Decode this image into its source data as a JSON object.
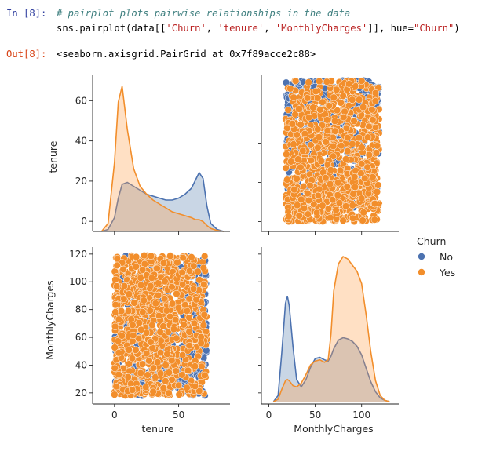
{
  "cell_in": {
    "prompt": "In [8]:",
    "comment": "# pairplot plots pairwise relationships in the data",
    "code": {
      "part1": "sns.pairplot(data[[",
      "s1": "'Churn'",
      "sep1": ", ",
      "s2": "'tenure'",
      "sep2": ", ",
      "s3": "'MonthlyCharges'",
      "part2": "]], hue=",
      "s4": "\"Churn\"",
      "part3": ")"
    }
  },
  "cell_out": {
    "prompt": "Out[8]:",
    "text": "<seaborn.axisgrid.PairGrid at 0x7f89acce2c88>"
  },
  "colors": {
    "no": "#4c72b0",
    "yes": "#f28e2b",
    "no_fill": "#5b84b1",
    "yes_fill": "#ffa24d"
  },
  "chart_data": {
    "type": "scatter",
    "variables": [
      "tenure",
      "MonthlyCharges"
    ],
    "legend": {
      "title": "Churn",
      "entries": [
        "No",
        "Yes"
      ],
      "placement": "right"
    },
    "xlabels": [
      "tenure",
      "MonthlyCharges"
    ],
    "ylabels": [
      "tenure",
      "MonthlyCharges"
    ],
    "panels": {
      "tenure_kde": {
        "xlim": [
          -17,
          90
        ],
        "x_ticks": [
          0,
          50
        ],
        "y_ticks": [
          0,
          20,
          40,
          60
        ],
        "ylim": [
          -5,
          73
        ],
        "x": [
          -10,
          -5,
          0,
          3,
          6,
          10,
          15,
          20,
          25,
          30,
          35,
          40,
          45,
          50,
          55,
          60,
          63,
          66,
          69,
          72,
          75,
          80,
          85
        ],
        "series": [
          {
            "name": "No",
            "values": [
              0,
              1,
              7,
              17,
              24,
              25,
              23,
              21,
              19,
              18,
              17,
              16,
              16,
              17,
              19,
              22,
              26,
              30,
              27,
              13,
              4,
              1,
              0
            ]
          },
          {
            "name": "Yes",
            "values": [
              0,
              4,
              35,
              66,
              74,
              52,
              32,
              23,
              19,
              16,
              14,
              12,
              10,
              9,
              8,
              7,
              6,
              6,
              5,
              3,
              1.5,
              0.5,
              0
            ]
          }
        ]
      },
      "monthly_kde": {
        "xlim": [
          -8,
          140
        ],
        "x_ticks": [
          0,
          50,
          100
        ],
        "x": [
          5,
          10,
          14,
          18,
          20,
          22,
          26,
          30,
          35,
          40,
          45,
          50,
          55,
          60,
          64,
          67,
          70,
          75,
          80,
          85,
          90,
          95,
          100,
          105,
          110,
          115,
          120,
          125,
          130
        ],
        "series": [
          {
            "name": "No",
            "values": [
              0,
              5,
              40,
              80,
              86,
              78,
              45,
              18,
              12,
              18,
              28,
              35,
              36,
              34,
              33,
              37,
              43,
              50,
              52,
              51,
              49,
              45,
              38,
              27,
              16,
              8,
              3,
              1,
              0
            ]
          },
          {
            "name": "Yes",
            "values": [
              0,
              2,
              10,
              17,
              18,
              17,
              13,
              12,
              15,
              22,
              30,
              33,
              34,
              32,
              34,
              55,
              90,
              112,
              118,
              116,
              111,
              106,
              96,
              70,
              40,
              17,
              5,
              1,
              0
            ]
          }
        ]
      },
      "scatter_upper": {
        "x_range": [
          18,
          119
        ],
        "y_range": [
          0,
          72
        ],
        "x_ticks": [
          0,
          50,
          100
        ],
        "y_ticks": [
          0,
          20,
          40,
          60
        ],
        "ylim": [
          -5,
          75
        ]
      },
      "scatter_lower": {
        "x_range": [
          0,
          72
        ],
        "y_range": [
          18,
          119
        ],
        "x_ticks": [
          0,
          50
        ],
        "y_ticks": [
          20,
          40,
          60,
          80,
          100,
          120
        ],
        "xlim": [
          -17,
          90
        ],
        "ylim": [
          12,
          125
        ]
      }
    }
  }
}
